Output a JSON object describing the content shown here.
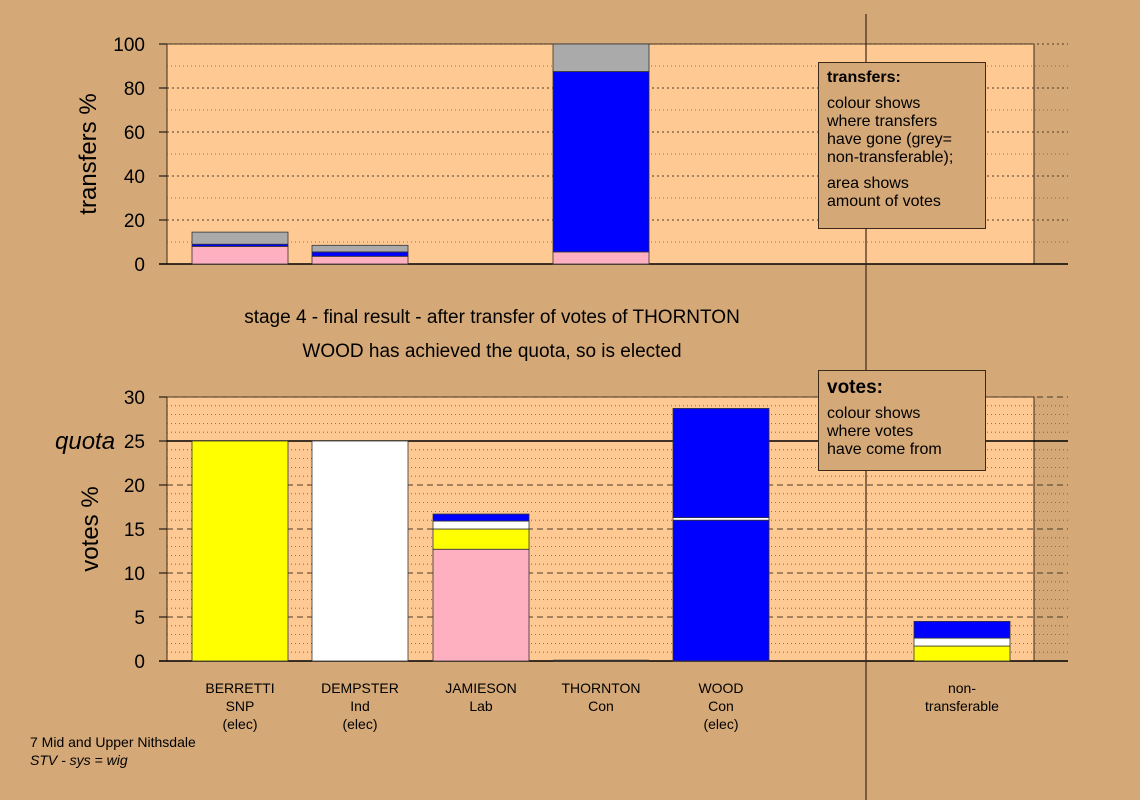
{
  "page": {
    "stage_line_1": "stage 4 - final result - after transfer of votes of THORNTON",
    "stage_line_2": "WOOD has achieved the quota, so is elected",
    "footer_line_1": "7 Mid and Upper Nithsdale",
    "footer_line_2": "STV - sys = wig"
  },
  "legends": {
    "transfers": {
      "title": "transfers:",
      "lines_a": [
        "colour shows",
        "where transfers",
        "have gone (grey=",
        "non-transferable);"
      ],
      "lines_b": [
        "area shows",
        "amount of votes"
      ]
    },
    "votes": {
      "title": "votes:",
      "lines": [
        "colour shows",
        "where votes",
        "have come from"
      ]
    }
  },
  "colors": {
    "background": "#d4a877",
    "plot_area": "#ffc993",
    "SNP": "#ffff00",
    "Ind": "#ffffff",
    "Lab": "#ffb0c0",
    "Con": "#0000ff",
    "non_transferable": "#aaaaaa"
  },
  "candidates": [
    {
      "name": "BERRETTI",
      "party": "SNP",
      "status": "(elec)"
    },
    {
      "name": "DEMPSTER",
      "party": "Ind",
      "status": "(elec)"
    },
    {
      "name": "JAMIESON",
      "party": "Lab",
      "status": ""
    },
    {
      "name": "THORNTON",
      "party": "Con",
      "status": ""
    },
    {
      "name": "WOOD",
      "party": "Con",
      "status": "(elec)"
    },
    {
      "name": "non-",
      "party": "transferable",
      "status": ""
    }
  ],
  "chart_data": [
    {
      "type": "bar",
      "stacked": true,
      "ylabel": "transfers %",
      "ylim": [
        0,
        100
      ],
      "yticks": [
        0,
        20,
        40,
        60,
        80,
        100
      ],
      "minor_gridlines": "dotted every 10",
      "categories": [
        "BERRETTI",
        "DEMPSTER",
        "JAMIESON",
        "THORNTON",
        "WOOD",
        "non-transferable"
      ],
      "bars": [
        [
          {
            "color": "Lab",
            "value": 8
          },
          {
            "color": "Con",
            "value": 1
          },
          {
            "color": "non_transferable",
            "value": 5.5
          }
        ],
        [
          {
            "color": "Lab",
            "value": 3.5
          },
          {
            "color": "Con",
            "value": 2
          },
          {
            "color": "non_transferable",
            "value": 3
          }
        ],
        [],
        [
          {
            "color": "Lab",
            "value": 5.5
          },
          {
            "color": "Con",
            "value": 82
          },
          {
            "color": "non_transferable",
            "value": 12.5
          }
        ],
        [],
        []
      ]
    },
    {
      "type": "bar",
      "stacked": true,
      "ylabel": "votes %",
      "ylim": [
        0,
        30
      ],
      "yticks": [
        0,
        5,
        10,
        15,
        20,
        25,
        30
      ],
      "quota": 25,
      "quota_label": "quota",
      "minor_gridlines": "dotted every 1",
      "categories": [
        "BERRETTI",
        "DEMPSTER",
        "JAMIESON",
        "THORNTON",
        "WOOD",
        "non-transferable"
      ],
      "bars": [
        [
          {
            "color": "SNP",
            "value": 25
          }
        ],
        [
          {
            "color": "Ind",
            "value": 25
          }
        ],
        [
          {
            "color": "Lab",
            "value": 12.7
          },
          {
            "color": "SNP",
            "value": 2.3
          },
          {
            "color": "Ind",
            "value": 0.9
          },
          {
            "color": "Con",
            "value": 0.8
          }
        ],
        [],
        [
          {
            "color": "Con",
            "value": 16
          },
          {
            "color": "Ind",
            "value": 0.3
          },
          {
            "color": "Con",
            "value": 12.4
          }
        ],
        [
          {
            "color": "SNP",
            "value": 1.7
          },
          {
            "color": "Ind",
            "value": 0.9
          },
          {
            "color": "Con",
            "value": 1.9
          }
        ]
      ]
    }
  ]
}
